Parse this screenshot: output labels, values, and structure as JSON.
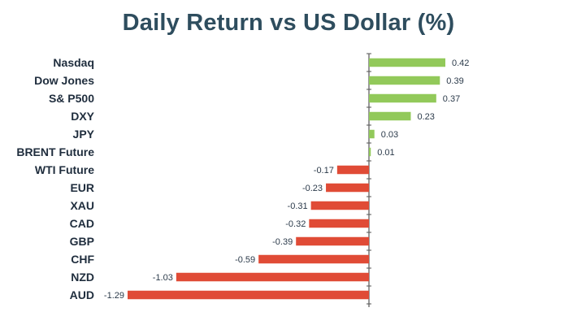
{
  "chart_data": {
    "type": "bar",
    "orientation": "horizontal",
    "title": "Daily Return vs US Dollar (%)",
    "xlabel": "",
    "ylabel": "",
    "categories": [
      "Nasdaq",
      "Dow Jones",
      "S& P500",
      "DXY",
      "JPY",
      "BRENT Future",
      "WTI Future",
      "EUR",
      "XAU",
      "CAD",
      "GBP",
      "CHF",
      "NZD",
      "AUD"
    ],
    "values": [
      0.42,
      0.39,
      0.37,
      0.23,
      0.03,
      0.01,
      -0.17,
      -0.23,
      -0.31,
      -0.32,
      -0.39,
      -0.59,
      -1.03,
      -1.29
    ],
    "value_labels": [
      "0.42",
      "0.39",
      "0.37",
      "0.23",
      "0.03",
      "0.01",
      "-0.17",
      "-0.23",
      "-0.31",
      "-0.32",
      "-0.39",
      "-0.59",
      "-1.03",
      "-1.29"
    ],
    "xlim": [
      -1.29,
      0.42
    ],
    "grid": false,
    "legend": "none",
    "colors": {
      "positive": "#92c95a",
      "negative": "#e04b36",
      "axis": "#555555"
    }
  }
}
